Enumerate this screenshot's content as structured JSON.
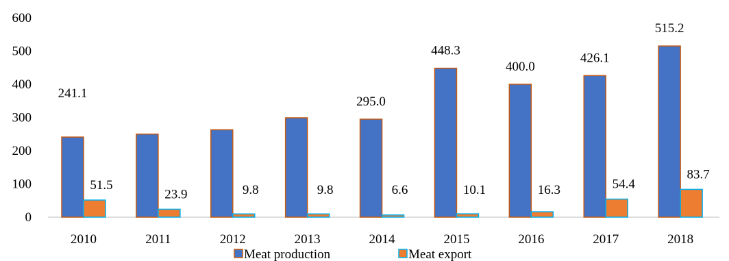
{
  "chart_data": {
    "type": "bar",
    "title": "",
    "xlabel": "",
    "ylabel": "",
    "categories": [
      "2010",
      "2011",
      "2012",
      "2013",
      "2014",
      "2015",
      "2016",
      "2017",
      "2018"
    ],
    "ylim": [
      0,
      600
    ],
    "yticks": [
      0,
      100,
      200,
      300,
      400,
      500,
      600
    ],
    "grid": false,
    "legend_position": "bottom",
    "series": [
      {
        "name": "Meat production",
        "values": [
          241.1,
          250,
          263,
          299,
          295.0,
          448.3,
          400.0,
          426.1,
          515.2
        ],
        "labels": [
          "241.1",
          "",
          "",
          "",
          "295.0",
          "448.3",
          "400.0",
          "426.1",
          "515.2"
        ],
        "color": "#4472C4",
        "border": "#C55A11"
      },
      {
        "name": "Meat export",
        "values": [
          51.5,
          23.9,
          9.8,
          9.8,
          6.6,
          10.1,
          16.3,
          54.4,
          83.7
        ],
        "labels": [
          "51.5",
          "23.9",
          "9.8",
          "9.8",
          "6.6",
          "10.1",
          "16.3",
          "54.4",
          "83.7"
        ],
        "color": "#ED7D31",
        "border": "#00B0F0"
      }
    ]
  }
}
